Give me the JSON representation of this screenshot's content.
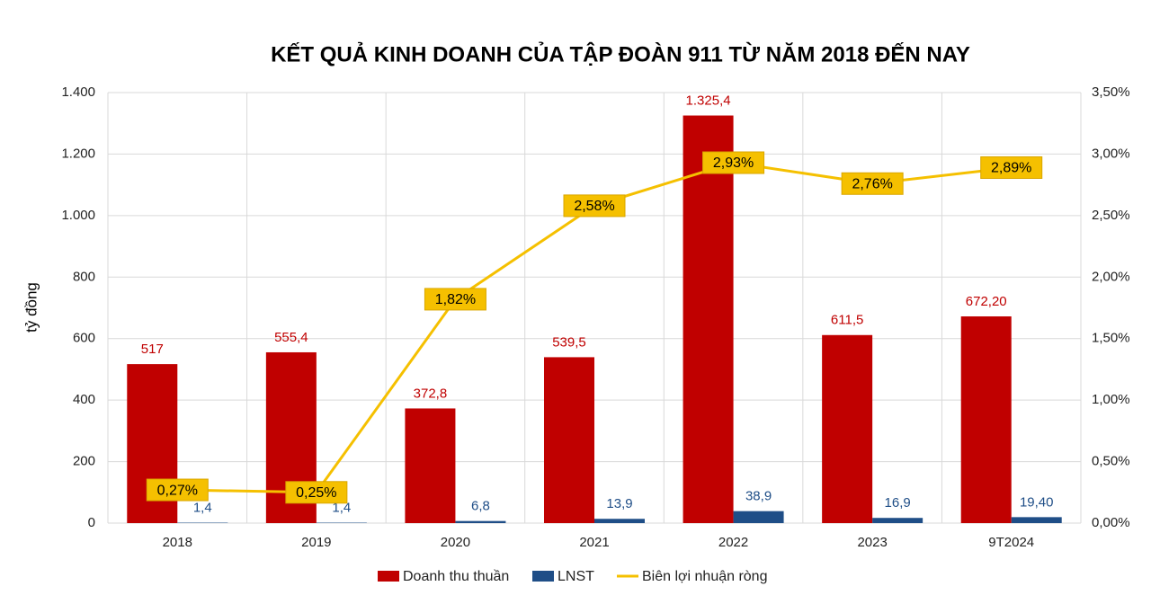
{
  "chart_data": {
    "type": "bar",
    "title": "KẾT QUẢ KINH DOANH CỦA TẬP ĐOÀN 911 TỪ NĂM 2018 ĐẾN NAY",
    "y_label": "tỷ đồng",
    "categories": [
      "2018",
      "2019",
      "2020",
      "2021",
      "2022",
      "2023",
      "9T2024"
    ],
    "series": [
      {
        "name": "Doanh thu thuần",
        "type": "bar",
        "color": "#c00000",
        "label_color": "#c00000",
        "values": [
          517,
          555.4,
          372.8,
          539.5,
          1325.4,
          611.5,
          672.2
        ],
        "value_labels": [
          "517",
          "555,4",
          "372,8",
          "539,5",
          "1.325,4",
          "611,5",
          "672,20"
        ]
      },
      {
        "name": "LNST",
        "type": "bar",
        "color": "#1f4e87",
        "label_color": "#1f4e87",
        "values": [
          1.4,
          1.4,
          6.8,
          13.9,
          38.9,
          16.9,
          19.4
        ],
        "value_labels": [
          "1,4",
          "1,4",
          "6,8",
          "13,9",
          "38,9",
          "16,9",
          "19,40"
        ]
      },
      {
        "name": "Biên lợi nhuận ròng",
        "type": "line",
        "axis": "y2",
        "color": "#f5c000",
        "label_color": "#000000",
        "values": [
          0.27,
          0.25,
          1.82,
          2.58,
          2.93,
          2.76,
          2.89
        ],
        "value_labels": [
          "0,27%",
          "0,25%",
          "1,82%",
          "2,58%",
          "2,93%",
          "2,76%",
          "2,89%"
        ]
      }
    ],
    "ylim": [
      0,
      1400
    ],
    "yticks": [
      0,
      200,
      400,
      600,
      800,
      {
        "value": 1000,
        "label": "1.000"
      },
      {
        "value": 1200,
        "label": "1.200"
      },
      {
        "value": 1400,
        "label": "1.400"
      }
    ],
    "y2lim": [
      0,
      3.5
    ],
    "y2ticks": [
      {
        "value": 0,
        "label": "0,00%"
      },
      {
        "value": 0.5,
        "label": "0,50%"
      },
      {
        "value": 1,
        "label": "1,00%"
      },
      {
        "value": 1.5,
        "label": "1,50%"
      },
      {
        "value": 2,
        "label": "2,00%"
      },
      {
        "value": 2.5,
        "label": "2,50%"
      },
      {
        "value": 3,
        "label": "3,00%"
      },
      {
        "value": 3.5,
        "label": "3,50%"
      }
    ],
    "grid": true
  }
}
